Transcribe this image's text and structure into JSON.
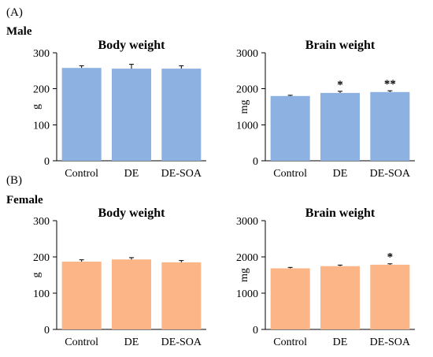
{
  "sections": [
    {
      "letter": "(A)",
      "sex": "Male"
    },
    {
      "letter": "(B)",
      "sex": "Female"
    }
  ],
  "colors": {
    "male": "#8db2e2",
    "female": "#fbb586"
  },
  "chart_data": [
    {
      "type": "bar",
      "section": 0,
      "column": 0,
      "title": "Body weight",
      "ylabel": "g",
      "categories": [
        "Control",
        "DE",
        "DE-SOA"
      ],
      "values": [
        258,
        256,
        256
      ],
      "errors": [
        6,
        12,
        8
      ],
      "significance": [
        "",
        "",
        ""
      ],
      "ylim": [
        0,
        300
      ],
      "yticks": [
        0,
        100,
        200,
        300
      ],
      "color": "#8db2e2",
      "grid": false,
      "legend": "none"
    },
    {
      "type": "bar",
      "section": 0,
      "column": 1,
      "title": "Brain weight",
      "ylabel": "mg",
      "categories": [
        "Control",
        "DE",
        "DE-SOA"
      ],
      "values": [
        1800,
        1885,
        1910
      ],
      "errors": [
        20,
        45,
        35
      ],
      "significance": [
        "",
        "*",
        "**"
      ],
      "ylim": [
        0,
        3000
      ],
      "yticks": [
        0,
        1000,
        2000,
        3000
      ],
      "color": "#8db2e2",
      "grid": false,
      "legend": "none"
    },
    {
      "type": "bar",
      "section": 1,
      "column": 0,
      "title": "Body weight",
      "ylabel": "g",
      "categories": [
        "Control",
        "DE",
        "DE-SOA"
      ],
      "values": [
        187,
        193,
        185
      ],
      "errors": [
        5,
        5,
        5
      ],
      "significance": [
        "",
        "",
        ""
      ],
      "ylim": [
        0,
        300
      ],
      "yticks": [
        0,
        100,
        200,
        300
      ],
      "color": "#fbb586",
      "grid": false,
      "legend": "none"
    },
    {
      "type": "bar",
      "section": 1,
      "column": 1,
      "title": "Brain weight",
      "ylabel": "mg",
      "categories": [
        "Control",
        "DE",
        "DE-SOA"
      ],
      "values": [
        1685,
        1745,
        1785
      ],
      "errors": [
        25,
        30,
        25
      ],
      "significance": [
        "",
        "",
        "*"
      ],
      "ylim": [
        0,
        3000
      ],
      "yticks": [
        0,
        1000,
        2000,
        3000
      ],
      "color": "#fbb586",
      "grid": false,
      "legend": "none"
    }
  ]
}
